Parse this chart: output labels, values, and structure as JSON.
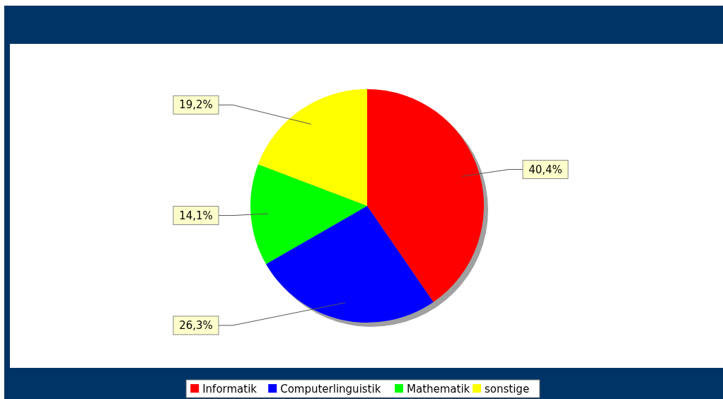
{
  "chart_data": {
    "type": "pie",
    "categories": [
      "Informatik",
      "Computerlinguistik",
      "Mathematik",
      "sonstige"
    ],
    "values": [
      40.4,
      26.3,
      14.1,
      19.2
    ],
    "colors": [
      "#ff0000",
      "#0000ff",
      "#00ff00",
      "#ffff00"
    ],
    "value_labels": [
      "40,4%",
      "26,3%",
      "14,1%",
      "19,2%"
    ],
    "legend": "bottom"
  }
}
